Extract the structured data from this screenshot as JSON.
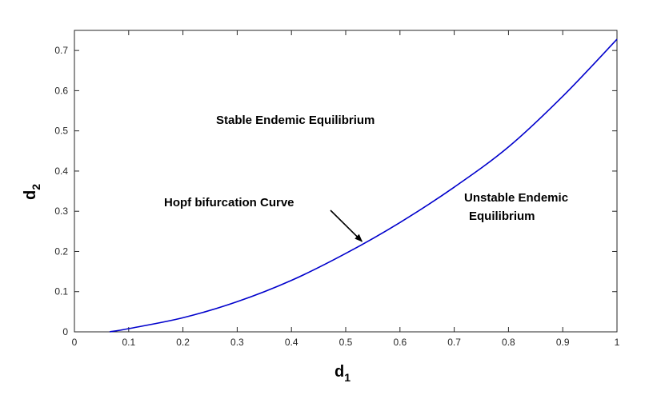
{
  "chart_data": {
    "type": "line",
    "title": "",
    "xlabel": {
      "main": "d",
      "sub": "1"
    },
    "ylabel": {
      "main": "d",
      "sub": "2"
    },
    "xlim": [
      0,
      1
    ],
    "ylim": [
      0,
      0.75
    ],
    "x_ticks": [
      0,
      0.1,
      0.2,
      0.3,
      0.4,
      0.5,
      0.6,
      0.7,
      0.8,
      0.9,
      1
    ],
    "x_tick_labels": [
      "0",
      "0.1",
      "0.2",
      "0.3",
      "0.4",
      "0.5",
      "0.6",
      "0.7",
      "0.8",
      "0.9",
      "1"
    ],
    "y_ticks": [
      0,
      0.1,
      0.2,
      0.3,
      0.4,
      0.5,
      0.6,
      0.7
    ],
    "y_tick_labels": [
      "0",
      "0.1",
      "0.2",
      "0.3",
      "0.4",
      "0.5",
      "0.6",
      "0.7"
    ],
    "grid": false,
    "series": [
      {
        "color": "#0000cc",
        "x": [
          0.065,
          0.1,
          0.2,
          0.3,
          0.4,
          0.5,
          0.6,
          0.7,
          0.8,
          0.9,
          1.0
        ],
        "y": [
          0.0,
          0.008,
          0.035,
          0.075,
          0.128,
          0.195,
          0.272,
          0.36,
          0.46,
          0.586,
          0.728
        ]
      }
    ],
    "annotations": [
      {
        "name": "stable-region-label",
        "text": "Stable Endemic Equilibrium"
      },
      {
        "name": "hopf-curve-label",
        "text": "Hopf bifurcation Curve",
        "arrow_to": {
          "x": 0.53,
          "y": 0.225
        }
      },
      {
        "name": "unstable-region-label-line1",
        "text": "Unstable Endemic"
      },
      {
        "name": "unstable-region-label-line2",
        "text": "Equilibrium"
      }
    ]
  }
}
